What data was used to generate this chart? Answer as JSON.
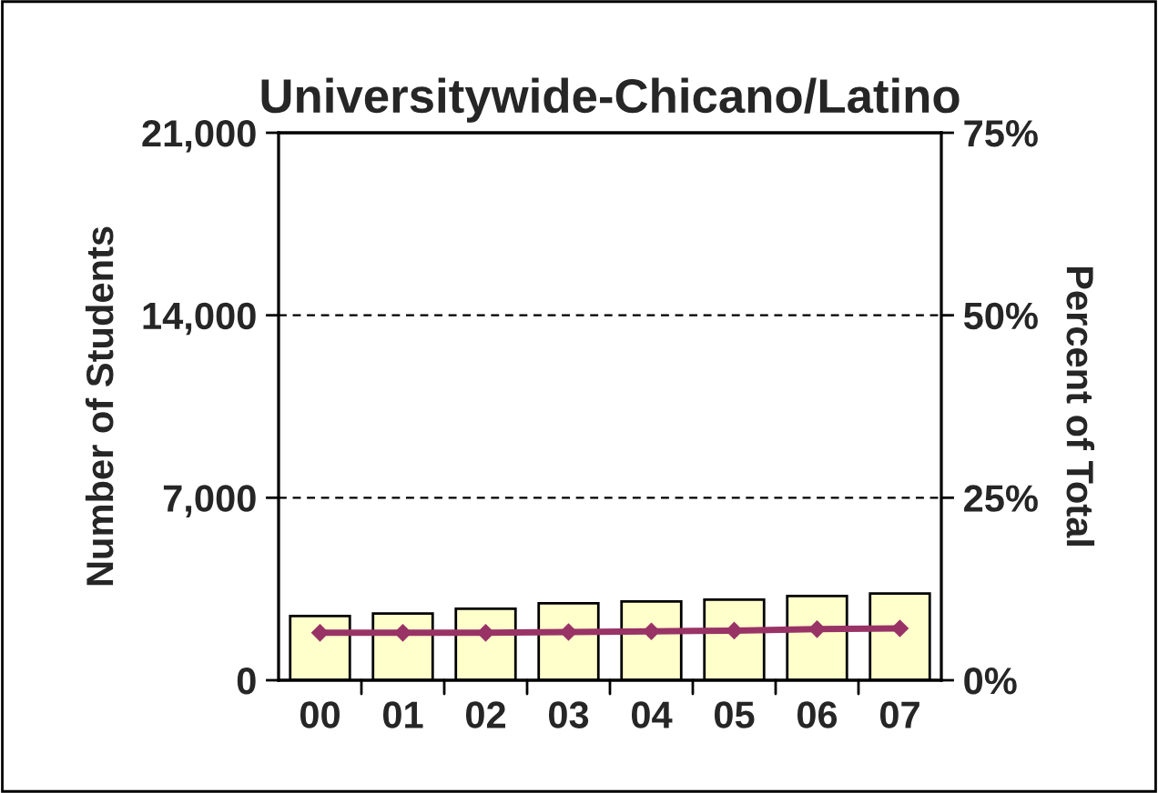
{
  "chart_data": {
    "type": "bar",
    "title": "Universitywide-Chicano/Latino",
    "categories": [
      "00",
      "01",
      "02",
      "03",
      "04",
      "05",
      "06",
      "07"
    ],
    "series": [
      {
        "color": "#ffffcc",
        "values": [
          2460,
          2560,
          2740,
          2950,
          3020,
          3090,
          3230,
          3330
        ]
      },
      {
        "type": "line",
        "axis": "y2",
        "color": "#993366",
        "marker": "diamond",
        "values": [
          6.5,
          6.5,
          6.5,
          6.6,
          6.7,
          6.8,
          7.0,
          7.1
        ]
      }
    ],
    "ylabel": "Number of Students",
    "y2label": "Percent of Total",
    "ylim": [
      0,
      21000
    ],
    "yticks": [
      {
        "value": 0,
        "label": "0"
      },
      {
        "value": 7000,
        "label": "7,000"
      },
      {
        "value": 14000,
        "label": "14,000"
      },
      {
        "value": 21000,
        "label": "21,000"
      }
    ],
    "y2lim": [
      0,
      75
    ],
    "y2ticks": [
      {
        "value": 0,
        "label": "0%"
      },
      {
        "value": 25,
        "label": "25%"
      },
      {
        "value": 50,
        "label": "50%"
      },
      {
        "value": 75,
        "label": "75%"
      }
    ],
    "grid": "y"
  }
}
